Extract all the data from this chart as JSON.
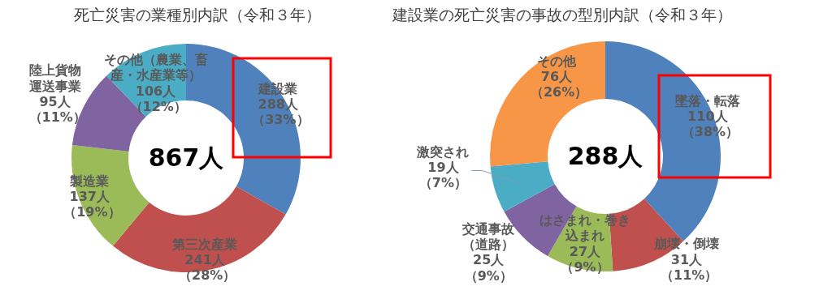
{
  "chart_data": [
    {
      "type": "donut",
      "title": "死亡災害の業種別内訳（令和３年）",
      "categories": [
        "建設業",
        "第三次産業",
        "製造業",
        "陸上貨物運送事業",
        "その他（農業、畜産・水産業等）"
      ],
      "values": [
        288,
        241,
        137,
        95,
        106
      ],
      "colors": [
        "#4f81bd",
        "#c0504d",
        "#9bbb59",
        "#8064a2",
        "#4bacc6"
      ],
      "value_labels": [
        "288人（33%）",
        "241人（28%）",
        "137人（19%）",
        "95人（11%）",
        "106人（12%）"
      ],
      "annotations": [
        "867人"
      ]
    },
    {
      "type": "donut",
      "title": "建設業の死亡災害の事故の型別内訳（令和３年）",
      "categories": [
        "墜落・転落",
        "崩壊・倒壊",
        "はさまれ・巻き込まれ",
        "交通事故（道路）",
        "激突され",
        "その他"
      ],
      "values": [
        110,
        31,
        27,
        25,
        19,
        76
      ],
      "colors": [
        "#4f81bd",
        "#c0504d",
        "#9bbb59",
        "#8064a2",
        "#4bacc6",
        "#f79646"
      ],
      "value_labels": [
        "110人（38%）",
        "31人（11%）",
        "27人（9%）",
        "25人（9%）",
        "19人（7%）",
        "76人（26%）"
      ],
      "annotations": [
        "288人"
      ]
    }
  ]
}
